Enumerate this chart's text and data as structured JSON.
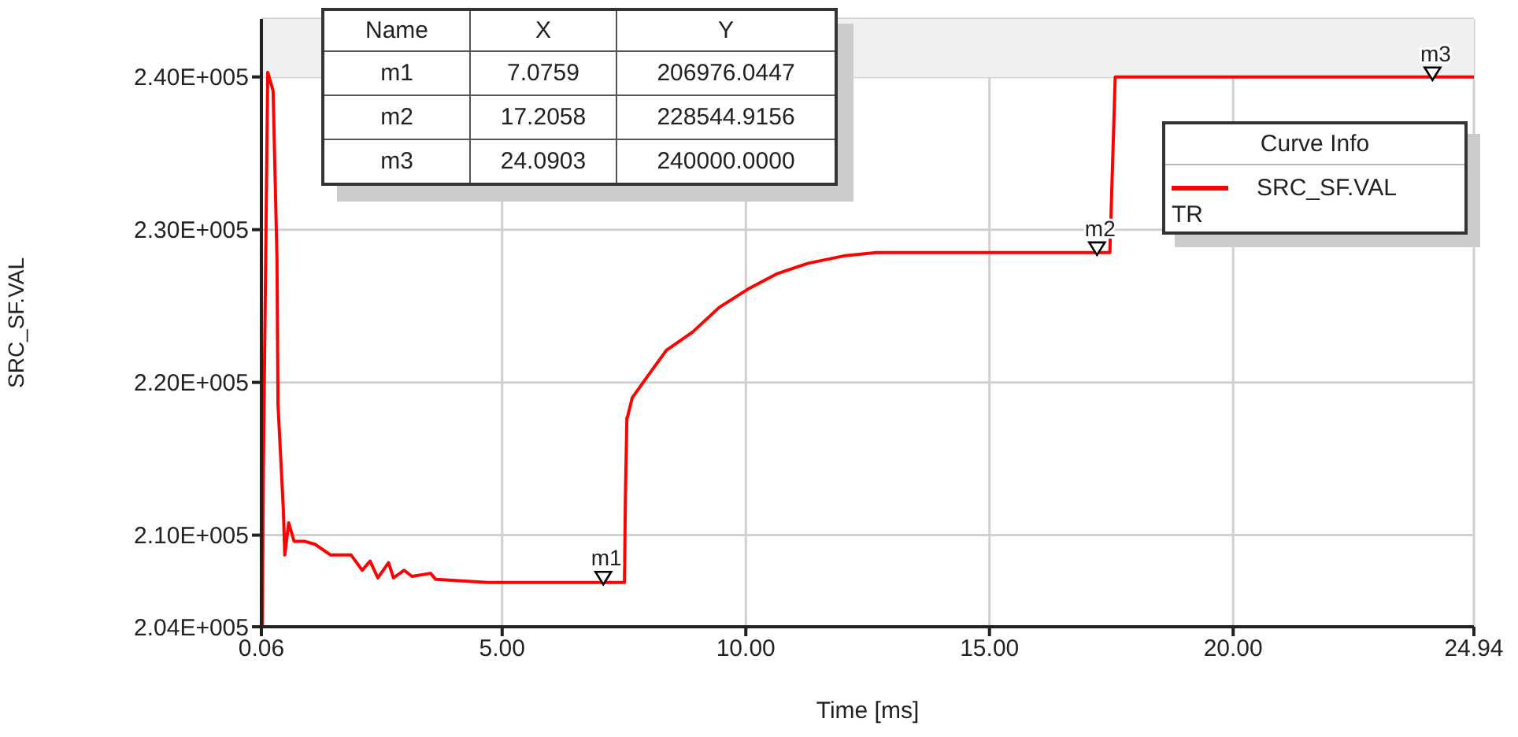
{
  "chart_data": {
    "type": "line",
    "xlabel": "Time [ms]",
    "ylabel": "SRC_SF.VAL",
    "legend_title": "Curve Info",
    "legend": "top right",
    "grid": true,
    "marker": "none",
    "line_style": "solid",
    "xlim": [
      0.06,
      24.94
    ],
    "xticks": [
      {
        "value": 0.06,
        "label": "0.06"
      },
      {
        "value": 5,
        "label": "5.00"
      },
      {
        "value": 10,
        "label": "10.00"
      },
      {
        "value": 15,
        "label": "15.00"
      },
      {
        "value": 20,
        "label": "20.00"
      },
      {
        "value": 24.94,
        "label": "24.94"
      }
    ],
    "ylim": [
      204000,
      243800
    ],
    "yticks": [
      {
        "value": 204000,
        "label": "2.04E+005"
      },
      {
        "value": 210000,
        "label": "2.10E+005"
      },
      {
        "value": 220000,
        "label": "2.20E+005"
      },
      {
        "value": 230000,
        "label": "2.30E+005"
      },
      {
        "value": 240000,
        "label": "2.40E+005"
      }
    ],
    "annotations": [
      "Name",
      "X",
      "Y",
      "m1",
      "7.0759",
      "206976.0447",
      "m2",
      "17.2058",
      "228544.9156",
      "m3",
      "24.0903",
      "240000.0000",
      "TR",
      {
        "text": "m1",
        "x": 7.0759,
        "y": 206976.0447
      },
      {
        "text": "m2",
        "x": 17.2058,
        "y": 228544.9156
      },
      {
        "text": "m3",
        "x": 24.0903,
        "y": 240000
      }
    ],
    "series": [
      {
        "name": "SRC_SF.VAL",
        "color": "#ff0000",
        "x": [
          0.06,
          0.08,
          0.1,
          0.19,
          0.3,
          0.38,
          0.4,
          0.51,
          0.54,
          0.62,
          0.73,
          0.94,
          1.16,
          1.48,
          1.9,
          2.13,
          2.29,
          2.45,
          2.67,
          2.77,
          2.99,
          3.15,
          3.53,
          3.64,
          4.71,
          7.51,
          7.53,
          7.56,
          7.57,
          7.67,
          8.05,
          8.37,
          8.91,
          9.45,
          10.04,
          10.63,
          11.28,
          12.04,
          12.68,
          17.47,
          17.58,
          24.94
        ],
        "values": [
          204000,
          204000,
          214300,
          240300,
          239100,
          228100,
          218600,
          211700,
          208700,
          210800,
          209600,
          209600,
          209400,
          208700,
          208700,
          207700,
          208300,
          207200,
          208200,
          207200,
          207700,
          207300,
          207500,
          207100,
          206900,
          206900,
          212700,
          217700,
          217700,
          219000,
          220700,
          222100,
          223300,
          224900,
          226100,
          227100,
          227800,
          228300,
          228500,
          228500,
          240000,
          240000
        ]
      }
    ]
  }
}
